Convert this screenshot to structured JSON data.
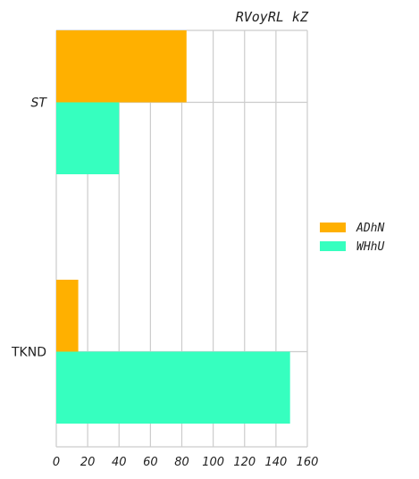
{
  "chart_data": {
    "type": "bar",
    "orientation": "horizontal",
    "title": "RVoyRL kZ",
    "categories": [
      "ST",
      "TKND"
    ],
    "category_italic": [
      true,
      false
    ],
    "series": [
      {
        "name": "ADhN",
        "color": "#ffb000",
        "values": [
          83,
          14
        ]
      },
      {
        "name": "WHhU",
        "color": "#36ffbf",
        "values": [
          40,
          149
        ]
      }
    ],
    "xlim": [
      0,
      160
    ],
    "xticks": [
      "0",
      "20",
      "40",
      "60",
      "80",
      "100",
      "120",
      "140",
      "160"
    ],
    "grid": true,
    "legend": "right",
    "xlabel": "",
    "ylabel": ""
  }
}
